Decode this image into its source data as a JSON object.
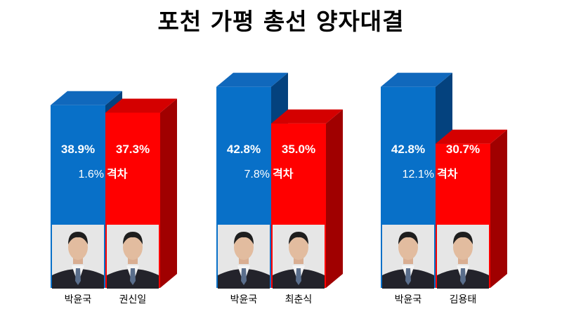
{
  "title": "포천 가평 총선 양자대결",
  "chart_data": {
    "type": "bar",
    "groups": [
      {
        "bars": [
          {
            "name": "박윤국",
            "value": 38.9,
            "label": "38.9%"
          },
          {
            "name": "권신일",
            "value": 37.3,
            "label": "37.3%"
          }
        ],
        "gap_value": "1.6%",
        "gap_word": "격차"
      },
      {
        "bars": [
          {
            "name": "박윤국",
            "value": 42.8,
            "label": "42.8%"
          },
          {
            "name": "최춘식",
            "value": 35.0,
            "label": "35.0%"
          }
        ],
        "gap_value": "7.8%",
        "gap_word": "격차"
      },
      {
        "bars": [
          {
            "name": "박윤국",
            "value": 42.8,
            "label": "42.8%"
          },
          {
            "name": "김용태",
            "value": 30.7,
            "label": "30.7%"
          }
        ],
        "gap_value": "12.1%",
        "gap_word": "격차"
      }
    ],
    "colors": {
      "first": "#0870C8",
      "second": "#FF0000"
    },
    "icons": [
      "candidate-photo"
    ]
  }
}
